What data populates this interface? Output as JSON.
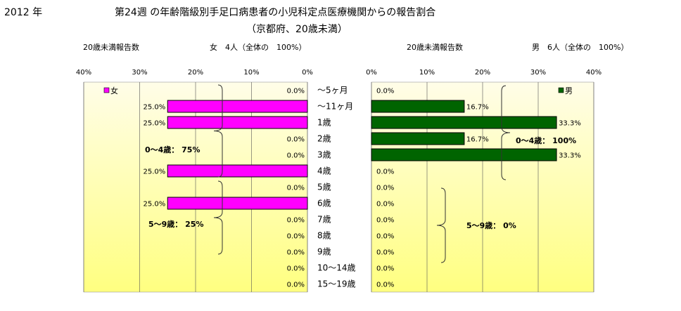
{
  "header": {
    "year": "2012 年",
    "title": "第24週 の年齢階級別手足口病患者の小児科定点医療機関からの報告割合",
    "subtitle": "（京都府、20歳未満）"
  },
  "colors": {
    "female": "#ff00ff",
    "male": "#006400",
    "bg_gradient_top": "#fffde8",
    "bg_gradient_bottom": "#ffff80"
  },
  "chart_data": [
    {
      "type": "bar",
      "orientation": "horizontal",
      "direction": "right-to-left",
      "header_label": "20歳未満報告数",
      "header_count": "女　4人（全体の　100%）",
      "legend": "女",
      "legend_position": "top-left",
      "categories": [
        "～5ヶ月",
        "～11ヶ月",
        "1歳",
        "2歳",
        "3歳",
        "4歳",
        "5歳",
        "6歳",
        "7歳",
        "8歳",
        "9歳",
        "10～14歳",
        "15～19歳"
      ],
      "values": [
        0.0,
        25.0,
        25.0,
        0.0,
        0.0,
        25.0,
        0.0,
        25.0,
        0.0,
        0.0,
        0.0,
        0.0,
        0.0
      ],
      "value_labels": [
        "0.0%",
        "25.0%",
        "25.0%",
        "0.0%",
        "0.0%",
        "25.0%",
        "0.0%",
        "25.0%",
        "0.0%",
        "0.0%",
        "0.0%",
        "0.0%",
        "0.0%"
      ],
      "xlim": [
        0,
        40
      ],
      "x_ticks": [
        "0%",
        "10%",
        "20%",
        "30%",
        "40%"
      ],
      "grid": true,
      "annotations": [
        "0～4歳：  75%",
        "5～9歳：  25%"
      ]
    },
    {
      "type": "bar",
      "orientation": "horizontal",
      "direction": "left-to-right",
      "header_label": "20歳未満報告数",
      "header_count": "男　6人（全体の　100%）",
      "legend": "男",
      "legend_position": "top-right",
      "categories": [
        "～5ヶ月",
        "～11ヶ月",
        "1歳",
        "2歳",
        "3歳",
        "4歳",
        "5歳",
        "6歳",
        "7歳",
        "8歳",
        "9歳",
        "10～14歳",
        "15～19歳"
      ],
      "values": [
        0.0,
        16.7,
        33.3,
        16.7,
        33.3,
        0.0,
        0.0,
        0.0,
        0.0,
        0.0,
        0.0,
        0.0,
        0.0
      ],
      "value_labels": [
        "0.0%",
        "16.7%",
        "33.3%",
        "16.7%",
        "33.3%",
        "0.0%",
        "0.0%",
        "0.0%",
        "0.0%",
        "0.0%",
        "0.0%",
        "0.0%",
        "0.0%"
      ],
      "xlim": [
        0,
        40
      ],
      "x_ticks": [
        "0%",
        "10%",
        "20%",
        "30%",
        "40%"
      ],
      "grid": true,
      "annotations": [
        "0～4歳：  100%",
        "5～9歳：   0%"
      ]
    }
  ]
}
